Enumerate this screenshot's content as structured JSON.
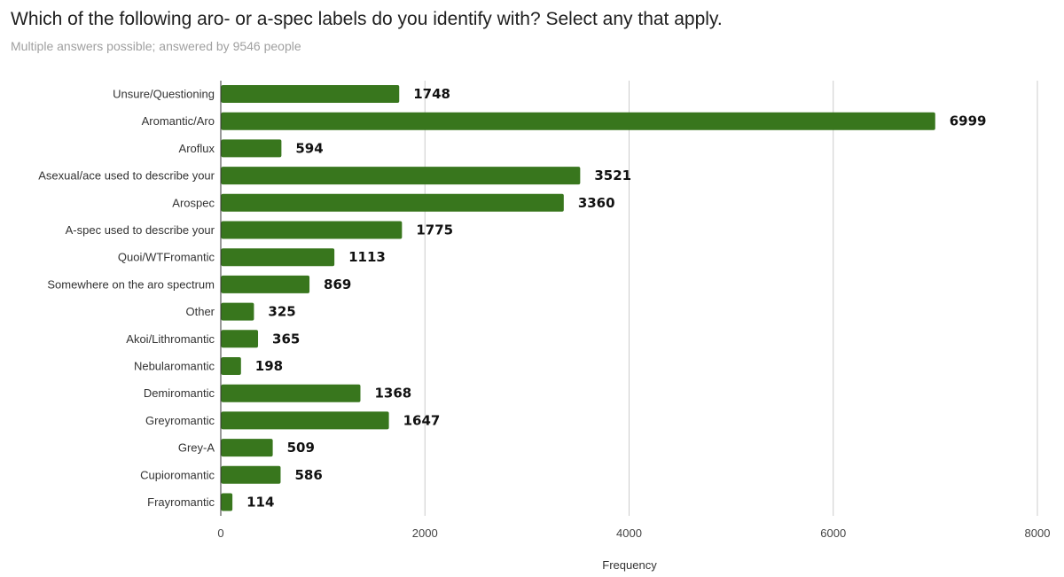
{
  "title": "Which of the following aro- or a-spec labels do you identify with? Select any that apply.",
  "subtitle": "Multiple answers possible; answered by 9546 people",
  "chart_data": {
    "type": "bar",
    "orientation": "horizontal",
    "categories": [
      "Unsure/Questioning",
      "Aromantic/Aro",
      "Aroflux",
      "Asexual/ace used to describe your",
      "Arospec",
      "A-spec used to describe your",
      "Quoi/WTFromantic",
      "Somewhere on the aro spectrum",
      "Other",
      "Akoi/Lithromantic",
      "Nebularomantic",
      "Demiromantic",
      "Greyromantic",
      "Grey-A",
      "Cupioromantic",
      "Frayromantic"
    ],
    "values": [
      1748,
      6999,
      594,
      3521,
      3360,
      1775,
      1113,
      869,
      325,
      365,
      198,
      1368,
      1647,
      509,
      586,
      114
    ],
    "xlabel": "Frequency",
    "ylabel": "",
    "xlim": [
      0,
      8000
    ],
    "xticks": [
      0,
      2000,
      4000,
      6000,
      8000
    ],
    "grid": true,
    "bar_color": "#38761d",
    "data_labels": true
  }
}
